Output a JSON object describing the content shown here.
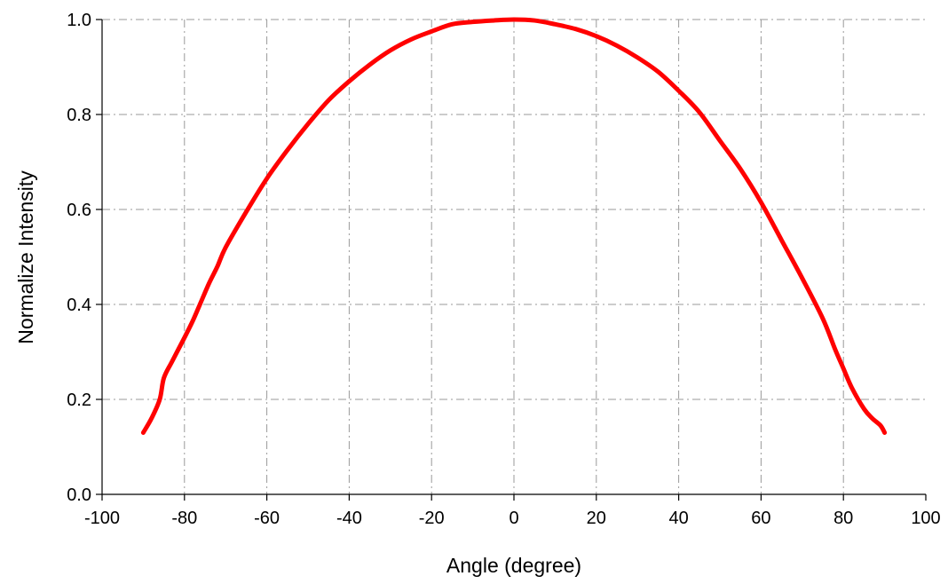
{
  "chart_data": {
    "type": "line",
    "title": "",
    "xlabel": "Angle  (degree)",
    "ylabel": "Normalize Intensity",
    "xlim": [
      -100,
      100
    ],
    "ylim": [
      0.0,
      1.0
    ],
    "x_ticks": [
      -100,
      -80,
      -60,
      -40,
      -20,
      0,
      20,
      40,
      60,
      80,
      100
    ],
    "x_tick_labels": [
      "-100",
      "-80",
      "-60",
      "-40",
      "-20",
      "0",
      "20",
      "40",
      "60",
      "80",
      "100"
    ],
    "y_ticks": [
      0.0,
      0.2,
      0.4,
      0.6,
      0.8,
      1.0
    ],
    "y_tick_labels": [
      "0.0",
      "0.2",
      "0.4",
      "0.6",
      "0.8",
      "1.0"
    ],
    "grid": true,
    "series": [
      {
        "color": "#ff0000",
        "x": [
          -90,
          -88,
          -86,
          -85,
          -83,
          -80,
          -78,
          -76,
          -74,
          -72,
          -70,
          -65,
          -60,
          -55,
          -50,
          -45,
          -40,
          -35,
          -30,
          -25,
          -20,
          -15,
          -10,
          -5,
          0,
          5,
          10,
          15,
          20,
          25,
          30,
          35,
          40,
          45,
          50,
          55,
          60,
          65,
          70,
          75,
          78,
          80,
          82,
          85,
          87,
          89,
          90
        ],
        "y": [
          0.13,
          0.16,
          0.2,
          0.245,
          0.28,
          0.33,
          0.365,
          0.405,
          0.445,
          0.48,
          0.52,
          0.595,
          0.665,
          0.725,
          0.78,
          0.83,
          0.87,
          0.905,
          0.935,
          0.958,
          0.975,
          0.99,
          0.995,
          0.998,
          1.0,
          0.998,
          0.99,
          0.98,
          0.965,
          0.945,
          0.92,
          0.89,
          0.85,
          0.805,
          0.745,
          0.685,
          0.615,
          0.535,
          0.455,
          0.37,
          0.305,
          0.265,
          0.225,
          0.18,
          0.16,
          0.145,
          0.13
        ]
      }
    ]
  }
}
